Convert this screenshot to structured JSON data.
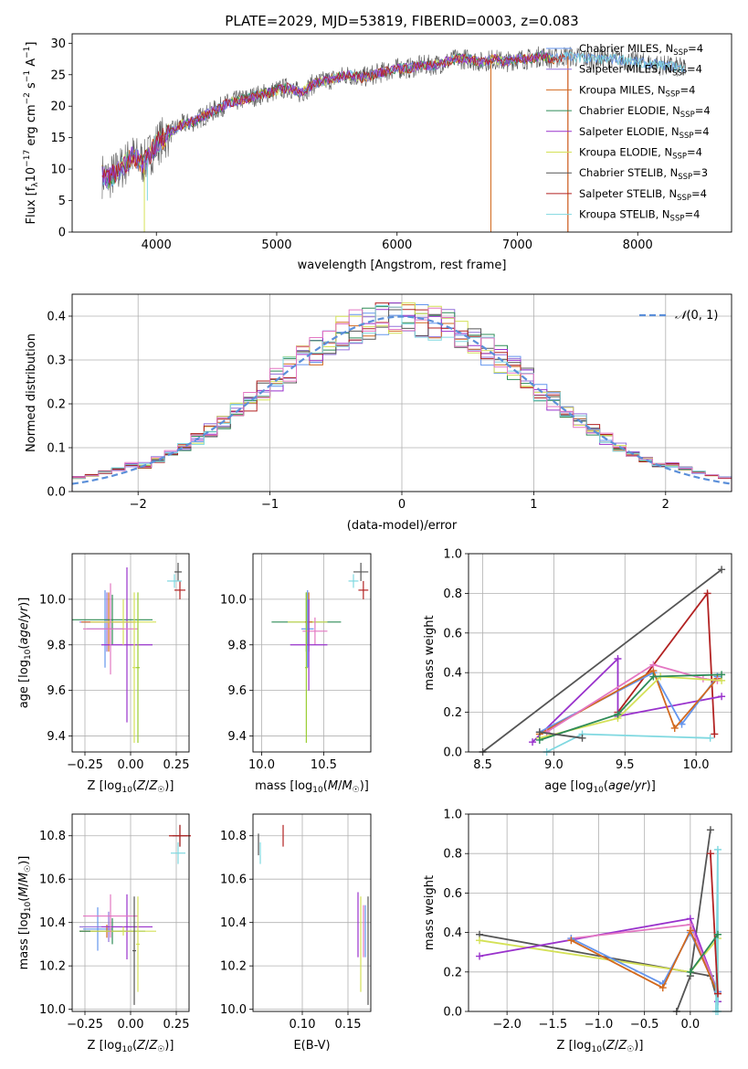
{
  "title": "PLATE=2029, MJD=53819, FIBERID=0003, z=0.083",
  "colors": {
    "chabrier_miles": "#6495ed",
    "salpeter_miles": "#9370db",
    "kroupa_miles": "#d2691e",
    "chabrier_elodie": "#2e8b57",
    "salpeter_elodie": "#9932cc",
    "kroupa_elodie": "#d4e157",
    "chabrier_stelib": "#555555",
    "salpeter_stelib": "#b22222",
    "kroupa_stelib": "#7fd8e0",
    "pink": "#e377c2",
    "gauss": "#5b8fd9"
  },
  "chart_data": [
    {
      "id": "spectrum",
      "type": "line",
      "title": "PLATE=2029, MJD=53819, FIBERID=0003, z=0.083",
      "xlabel": "wavelength [Angstrom, rest frame]",
      "ylabel": "Flux [f_λ 10^-17 erg cm^-2 s^-1 A^-1]",
      "xlim": [
        3300,
        8780
      ],
      "ylim": [
        0,
        31.5
      ],
      "xticks": [
        4000,
        5000,
        6000,
        7000,
        8000
      ],
      "yticks": [
        0,
        5,
        10,
        15,
        20,
        25,
        30
      ],
      "grid": false,
      "legend_position": "right",
      "continuum_x": [
        3550,
        3600,
        3700,
        3800,
        3900,
        4000,
        4100,
        4200,
        4300,
        4400,
        4500,
        4600,
        4700,
        4800,
        4900,
        5000,
        5100,
        5200,
        5300,
        5400,
        5500,
        5600,
        5700,
        5800,
        5900,
        6000,
        6100,
        6200,
        6300,
        6400,
        6500,
        6600,
        6700,
        6800,
        6900,
        7000,
        7100,
        7200,
        7300,
        7400,
        7600,
        7800,
        8000,
        8200,
        8400
      ],
      "continuum_y": [
        9,
        8.5,
        10,
        12,
        11,
        14,
        15.5,
        17,
        17.5,
        18.5,
        19.5,
        20.5,
        21,
        21.5,
        22,
        22.5,
        23,
        22,
        23.5,
        24,
        24.5,
        25,
        24.5,
        25,
        25.5,
        26,
        26,
        26.5,
        26.5,
        27,
        27.5,
        27.5,
        27,
        27.5,
        27,
        27.5,
        27.5,
        28,
        27.5,
        28,
        27.5,
        27.5,
        27,
        26.5,
        26
      ],
      "series": [
        {
          "name": "Chabrier MILES, N_SSP=4",
          "legend_main": "Chabrier MILES, N",
          "legend_sub": "SSP",
          "legend_end": "=4",
          "color": "#6495ed"
        },
        {
          "name": "Salpeter MILES, N_SSP=4",
          "legend_main": "Salpeter MILES, N",
          "legend_sub": "SSP",
          "legend_end": "=4",
          "color": "#9370db"
        },
        {
          "name": "Kroupa MILES, N_SSP=4",
          "legend_main": "Kroupa MILES, N",
          "legend_sub": "SSP",
          "legend_end": "=4",
          "color": "#d2691e"
        },
        {
          "name": "Chabrier ELODIE, N_SSP=4",
          "legend_main": "Chabrier ELODIE, N",
          "legend_sub": "SSP",
          "legend_end": "=4",
          "color": "#2e8b57"
        },
        {
          "name": "Salpeter ELODIE, N_SSP=4",
          "legend_main": "Salpeter ELODIE, N",
          "legend_sub": "SSP",
          "legend_end": "=4",
          "color": "#9932cc"
        },
        {
          "name": "Kroupa ELODIE, N_SSP=4",
          "legend_main": "Kroupa ELODIE, N",
          "legend_sub": "SSP",
          "legend_end": "=4",
          "color": "#d4e157"
        },
        {
          "name": "Chabrier STELIB, N_SSP=3",
          "legend_main": "Chabrier STELIB, N",
          "legend_sub": "SSP",
          "legend_end": "=3",
          "color": "#555555"
        },
        {
          "name": "Salpeter STELIB, N_SSP=4",
          "legend_main": "Salpeter STELIB, N",
          "legend_sub": "SSP",
          "legend_end": "=4",
          "color": "#b22222"
        },
        {
          "name": "Kroupa STELIB, N_SSP=4",
          "legend_main": "Kroupa STELIB, N",
          "legend_sub": "SSP",
          "legend_end": "=4",
          "color": "#7fd8e0"
        }
      ],
      "drop_lines": [
        {
          "x": 3900,
          "color": "#d4e157"
        },
        {
          "x": 3925,
          "color": "#7fd8e0",
          "y_end": 5
        },
        {
          "x": 6780,
          "color": "#d2691e"
        },
        {
          "x": 7420,
          "color": "#b22222"
        },
        {
          "x": 7420,
          "color": "#d2691e"
        }
      ]
    },
    {
      "id": "residuals",
      "type": "histogram",
      "xlabel": "(data-model)/error",
      "ylabel": "Normed distribution",
      "xlim": [
        -2.5,
        2.5
      ],
      "ylim": [
        0,
        0.45
      ],
      "xticks": [
        -2,
        -1,
        0,
        1,
        2
      ],
      "xtick_labels": [
        "−2",
        "−1",
        "0",
        "1",
        "2"
      ],
      "yticks": [
        0.0,
        0.1,
        0.2,
        0.3,
        0.4
      ],
      "ytick_labels": [
        "0.0",
        "0.1",
        "0.2",
        "0.3",
        "0.4"
      ],
      "grid": true,
      "bin_width": 0.1,
      "legend": "N(0,1)",
      "legend_position": "top-right",
      "gaussian_color": "#5b8fd9"
    },
    {
      "id": "age_vs_Z",
      "type": "errorbar",
      "xlabel": "Z [log10(Z/Z☉)]",
      "ylabel": "age [log10(age/yr)]",
      "xlim": [
        -0.32,
        0.32
      ],
      "ylim": [
        9.33,
        10.2
      ],
      "xticks": [
        -0.25,
        0.0,
        0.25
      ],
      "xtick_labels": [
        "−0.25",
        "0.00",
        "0.25"
      ],
      "yticks": [
        9.4,
        9.6,
        9.8,
        10.0
      ],
      "ytick_labels": [
        "9.4",
        "9.6",
        "9.8",
        "10.0"
      ],
      "grid": true,
      "points": [
        {
          "x": -0.14,
          "y": 9.87,
          "xerr": 0.1,
          "yerr": 0.17,
          "color": "#6495ed"
        },
        {
          "x": -0.13,
          "y": 9.9,
          "xerr": 0.15,
          "yerr": 0.13,
          "color": "#9370db"
        },
        {
          "x": -0.12,
          "y": 9.9,
          "xerr": 0.15,
          "yerr": 0.13,
          "color": "#d2691e"
        },
        {
          "x": -0.1,
          "y": 9.91,
          "xerr": 0.22,
          "yerr": 0.11,
          "color": "#2e8b57"
        },
        {
          "x": -0.02,
          "y": 9.8,
          "xerr": 0.14,
          "yerr": 0.34,
          "color": "#9932cc"
        },
        {
          "x": -0.04,
          "y": 9.9,
          "xerr": 0.18,
          "yerr": 0.1,
          "color": "#d4e157"
        },
        {
          "x": 0.26,
          "y": 10.12,
          "xerr": 0.02,
          "yerr": 0.04,
          "color": "#555555"
        },
        {
          "x": 0.27,
          "y": 10.04,
          "xerr": 0.03,
          "yerr": 0.04,
          "color": "#b22222"
        },
        {
          "x": 0.24,
          "y": 10.08,
          "xerr": 0.04,
          "yerr": 0.03,
          "color": "#7fd8e0"
        },
        {
          "x": -0.11,
          "y": 9.87,
          "xerr": 0.15,
          "yerr": 0.2,
          "color": "#e377c2"
        },
        {
          "x": 0.04,
          "y": 9.7,
          "xerr": 0.01,
          "yerr": 0.33,
          "color": "#9acd32"
        },
        {
          "x": 0.02,
          "y": 9.7,
          "xerr": 0.01,
          "yerr": 0.33,
          "color": "#d4e157"
        }
      ]
    },
    {
      "id": "age_vs_mass",
      "type": "errorbar",
      "xlabel": "mass [log10(M/M☉)]",
      "ylabel": "",
      "xlim": [
        9.93,
        10.88
      ],
      "ylim": [
        9.33,
        10.2
      ],
      "xticks": [
        10.0,
        10.5
      ],
      "xtick_labels": [
        "10.0",
        "10.5"
      ],
      "yticks": [
        9.4,
        9.6,
        9.8,
        10.0
      ],
      "ytick_labels": [
        "9.4",
        "9.6",
        "9.8",
        "10.0"
      ],
      "grid": true,
      "points": [
        {
          "x": 10.36,
          "y": 9.9,
          "xerr": 0.28,
          "yerr": 0.13,
          "color": "#2e8b57"
        },
        {
          "x": 10.37,
          "y": 9.9,
          "xerr": 0.16,
          "yerr": 0.1,
          "color": "#d4e157"
        },
        {
          "x": 10.38,
          "y": 9.9,
          "xerr": 0.03,
          "yerr": 0.13,
          "color": "#d2691e"
        },
        {
          "x": 10.37,
          "y": 9.87,
          "xerr": 0.05,
          "yerr": 0.17,
          "color": "#6495ed"
        },
        {
          "x": 10.43,
          "y": 9.86,
          "xerr": 0.1,
          "yerr": 0.06,
          "color": "#e377c2"
        },
        {
          "x": 10.38,
          "y": 9.8,
          "xerr": 0.15,
          "yerr": 0.2,
          "color": "#9932cc"
        },
        {
          "x": 10.36,
          "y": 9.7,
          "xerr": 0.01,
          "yerr": 0.33,
          "color": "#9acd32"
        },
        {
          "x": 10.8,
          "y": 10.12,
          "xerr": 0.06,
          "yerr": 0.04,
          "color": "#555555"
        },
        {
          "x": 10.82,
          "y": 10.04,
          "xerr": 0.04,
          "yerr": 0.04,
          "color": "#b22222"
        },
        {
          "x": 10.74,
          "y": 10.08,
          "xerr": 0.04,
          "yerr": 0.03,
          "color": "#7fd8e0"
        }
      ]
    },
    {
      "id": "weight_vs_age",
      "type": "line",
      "xlabel": "age [log10(age/yr)]",
      "ylabel": "mass weight",
      "xlim": [
        8.4,
        10.25
      ],
      "ylim": [
        0,
        1.0
      ],
      "xticks": [
        8.5,
        9.0,
        9.5,
        10.0
      ],
      "xtick_labels": [
        "8.5",
        "9.0",
        "9.5",
        "10.0"
      ],
      "yticks": [
        0.0,
        0.2,
        0.4,
        0.6,
        0.8,
        1.0
      ],
      "ytick_labels": [
        "0.0",
        "0.2",
        "0.4",
        "0.6",
        "0.8",
        "1.0"
      ],
      "grid": true,
      "series": [
        {
          "color": "#555555",
          "x": [
            8.5,
            10.18
          ],
          "y": [
            0.0,
            0.92
          ]
        },
        {
          "color": "#b22222",
          "x": [
            9.45,
            10.08,
            10.13
          ],
          "y": [
            0.2,
            0.8,
            0.09
          ]
        },
        {
          "color": "#9932cc",
          "x": [
            8.85,
            9.45,
            9.45,
            10.18
          ],
          "y": [
            0.05,
            0.47,
            0.18,
            0.28
          ]
        },
        {
          "color": "#6495ed",
          "x": [
            8.9,
            9.7,
            9.9,
            10.15
          ],
          "y": [
            0.1,
            0.4,
            0.14,
            0.38
          ]
        },
        {
          "color": "#d2691e",
          "x": [
            8.9,
            9.7,
            9.85,
            10.15
          ],
          "y": [
            0.09,
            0.41,
            0.12,
            0.37
          ]
        },
        {
          "color": "#e377c2",
          "x": [
            8.95,
            9.7,
            10.05,
            10.15
          ],
          "y": [
            0.1,
            0.44,
            0.37,
            0.36
          ]
        },
        {
          "color": "#d4e157",
          "x": [
            8.9,
            9.45,
            9.75,
            10.18
          ],
          "y": [
            0.07,
            0.17,
            0.38,
            0.36
          ]
        },
        {
          "color": "#2e8b57",
          "x": [
            8.9,
            9.45,
            9.7,
            10.18
          ],
          "y": [
            0.06,
            0.19,
            0.38,
            0.39
          ]
        },
        {
          "color": "#7fd8e0",
          "x": [
            8.95,
            9.2,
            10.1
          ],
          "y": [
            0.0,
            0.09,
            0.07
          ]
        },
        {
          "color": "#555555",
          "x": [
            8.9,
            9.2
          ],
          "y": [
            0.1,
            0.07
          ]
        }
      ]
    },
    {
      "id": "mass_vs_Z",
      "type": "errorbar",
      "xlabel": "Z [log10(Z/Z☉)]",
      "ylabel": "mass [log10(M/M☉)]",
      "xlim": [
        -0.32,
        0.32
      ],
      "ylim": [
        9.99,
        10.9
      ],
      "xticks": [
        -0.25,
        0.0,
        0.25
      ],
      "xtick_labels": [
        "−0.25",
        "0.00",
        "0.25"
      ],
      "yticks": [
        10.0,
        10.2,
        10.4,
        10.6,
        10.8
      ],
      "ytick_labels": [
        "10.0",
        "10.2",
        "10.4",
        "10.6",
        "10.8"
      ],
      "grid": true,
      "points": [
        {
          "x": -0.18,
          "y": 10.37,
          "xerr": 0.08,
          "yerr": 0.1,
          "color": "#6495ed"
        },
        {
          "x": -0.12,
          "y": 10.38,
          "xerr": 0.16,
          "yerr": 0.07,
          "color": "#9370db"
        },
        {
          "x": -0.13,
          "y": 10.36,
          "xerr": 0.15,
          "yerr": 0.03,
          "color": "#d2691e"
        },
        {
          "x": -0.1,
          "y": 10.36,
          "xerr": 0.18,
          "yerr": 0.06,
          "color": "#2e8b57"
        },
        {
          "x": -0.02,
          "y": 10.38,
          "xerr": 0.14,
          "yerr": 0.15,
          "color": "#9932cc"
        },
        {
          "x": -0.04,
          "y": 10.36,
          "xerr": 0.18,
          "yerr": 0.02,
          "color": "#d4e157"
        },
        {
          "x": -0.11,
          "y": 10.43,
          "xerr": 0.15,
          "yerr": 0.1,
          "color": "#e377c2"
        },
        {
          "x": 0.02,
          "y": 10.27,
          "xerr": 0.01,
          "yerr": 0.25,
          "color": "#555555"
        },
        {
          "x": 0.04,
          "y": 10.3,
          "xerr": 0.01,
          "yerr": 0.22,
          "color": "#d4e157"
        },
        {
          "x": 0.27,
          "y": 10.8,
          "xerr": 0.04,
          "yerr": 0.05,
          "color": "#555555"
        },
        {
          "x": 0.27,
          "y": 10.8,
          "xerr": 0.06,
          "yerr": 0.05,
          "color": "#b22222"
        },
        {
          "x": 0.26,
          "y": 10.72,
          "xerr": 0.04,
          "yerr": 0.05,
          "color": "#7fd8e0"
        }
      ]
    },
    {
      "id": "mass_vs_EBV",
      "type": "errorbar",
      "xlabel": "E(B-V)",
      "ylabel": "",
      "xlim": [
        0.046,
        0.175
      ],
      "ylim": [
        9.99,
        10.9
      ],
      "xticks": [
        0.1,
        0.15
      ],
      "xtick_labels": [
        "0.10",
        "0.15"
      ],
      "yticks": [
        10.0,
        10.2,
        10.4,
        10.6,
        10.8
      ],
      "ytick_labels": [
        "10.0",
        "10.2",
        "10.4",
        "10.6",
        "10.8"
      ],
      "grid": true,
      "points": [
        {
          "x": 0.052,
          "y": 10.76,
          "xerr": 0,
          "yerr": 0.05,
          "color": "#555555"
        },
        {
          "x": 0.054,
          "y": 10.72,
          "xerr": 0,
          "yerr": 0.05,
          "color": "#7fd8e0"
        },
        {
          "x": 0.079,
          "y": 10.8,
          "xerr": 0,
          "yerr": 0.05,
          "color": "#b22222"
        },
        {
          "x": 0.161,
          "y": 10.39,
          "xerr": 0,
          "yerr": 0.15,
          "color": "#9932cc"
        },
        {
          "x": 0.164,
          "y": 10.3,
          "xerr": 0,
          "yerr": 0.22,
          "color": "#d4e157"
        },
        {
          "x": 0.167,
          "y": 10.36,
          "xerr": 0,
          "yerr": 0.12,
          "color": "#e377c2"
        },
        {
          "x": 0.169,
          "y": 10.36,
          "xerr": 0,
          "yerr": 0.12,
          "color": "#6495ed"
        },
        {
          "x": 0.172,
          "y": 10.27,
          "xerr": 0,
          "yerr": 0.25,
          "color": "#555555"
        }
      ]
    },
    {
      "id": "weight_vs_Z",
      "type": "line",
      "xlabel": "Z [log10(Z/Z☉)]",
      "ylabel": "mass weight",
      "xlim": [
        -2.42,
        0.45
      ],
      "ylim": [
        0,
        1.0
      ],
      "xticks": [
        -2.0,
        -1.5,
        -1.0,
        -0.5,
        0.0
      ],
      "xtick_labels": [
        "−2.0",
        "−1.5",
        "−1.0",
        "−0.5",
        "0.0"
      ],
      "yticks": [
        0.0,
        0.2,
        0.4,
        0.6,
        0.8,
        1.0
      ],
      "ytick_labels": [
        "0.0",
        "0.2",
        "0.4",
        "0.6",
        "0.8",
        "1.0"
      ],
      "grid": true,
      "series": [
        {
          "color": "#555555",
          "x": [
            -0.15,
            0.0,
            0.22
          ],
          "y": [
            0.0,
            0.18,
            0.92
          ]
        },
        {
          "color": "#555555",
          "x": [
            -2.3,
            0.22,
            0.3
          ],
          "y": [
            0.39,
            0.18,
            0.05
          ]
        },
        {
          "color": "#d4e157",
          "x": [
            -2.3,
            0.0,
            0.3,
            0.3
          ],
          "y": [
            0.36,
            0.2,
            0.37,
            0.1
          ]
        },
        {
          "color": "#9932cc",
          "x": [
            -2.3,
            0.0,
            0.3,
            0.3
          ],
          "y": [
            0.28,
            0.47,
            0.1,
            0.05
          ]
        },
        {
          "color": "#e377c2",
          "x": [
            -1.3,
            0.0,
            0.3
          ],
          "y": [
            0.37,
            0.44,
            0.1
          ]
        },
        {
          "color": "#6495ed",
          "x": [
            -1.3,
            -0.3,
            0.0,
            0.3
          ],
          "y": [
            0.37,
            0.14,
            0.4,
            0.1
          ]
        },
        {
          "color": "#d2691e",
          "x": [
            -1.3,
            -0.3,
            0.0,
            0.3
          ],
          "y": [
            0.36,
            0.12,
            0.41,
            0.09
          ]
        },
        {
          "color": "#7fd8e0",
          "x": [
            0.28,
            0.3,
            0.3
          ],
          "y": [
            0.0,
            0.82,
            0.0
          ]
        },
        {
          "color": "#b22222",
          "x": [
            0.22,
            0.3
          ],
          "y": [
            0.8,
            0.09
          ]
        },
        {
          "color": "#2e8b57",
          "x": [
            0.0,
            0.3
          ],
          "y": [
            0.2,
            0.39
          ]
        }
      ]
    }
  ]
}
